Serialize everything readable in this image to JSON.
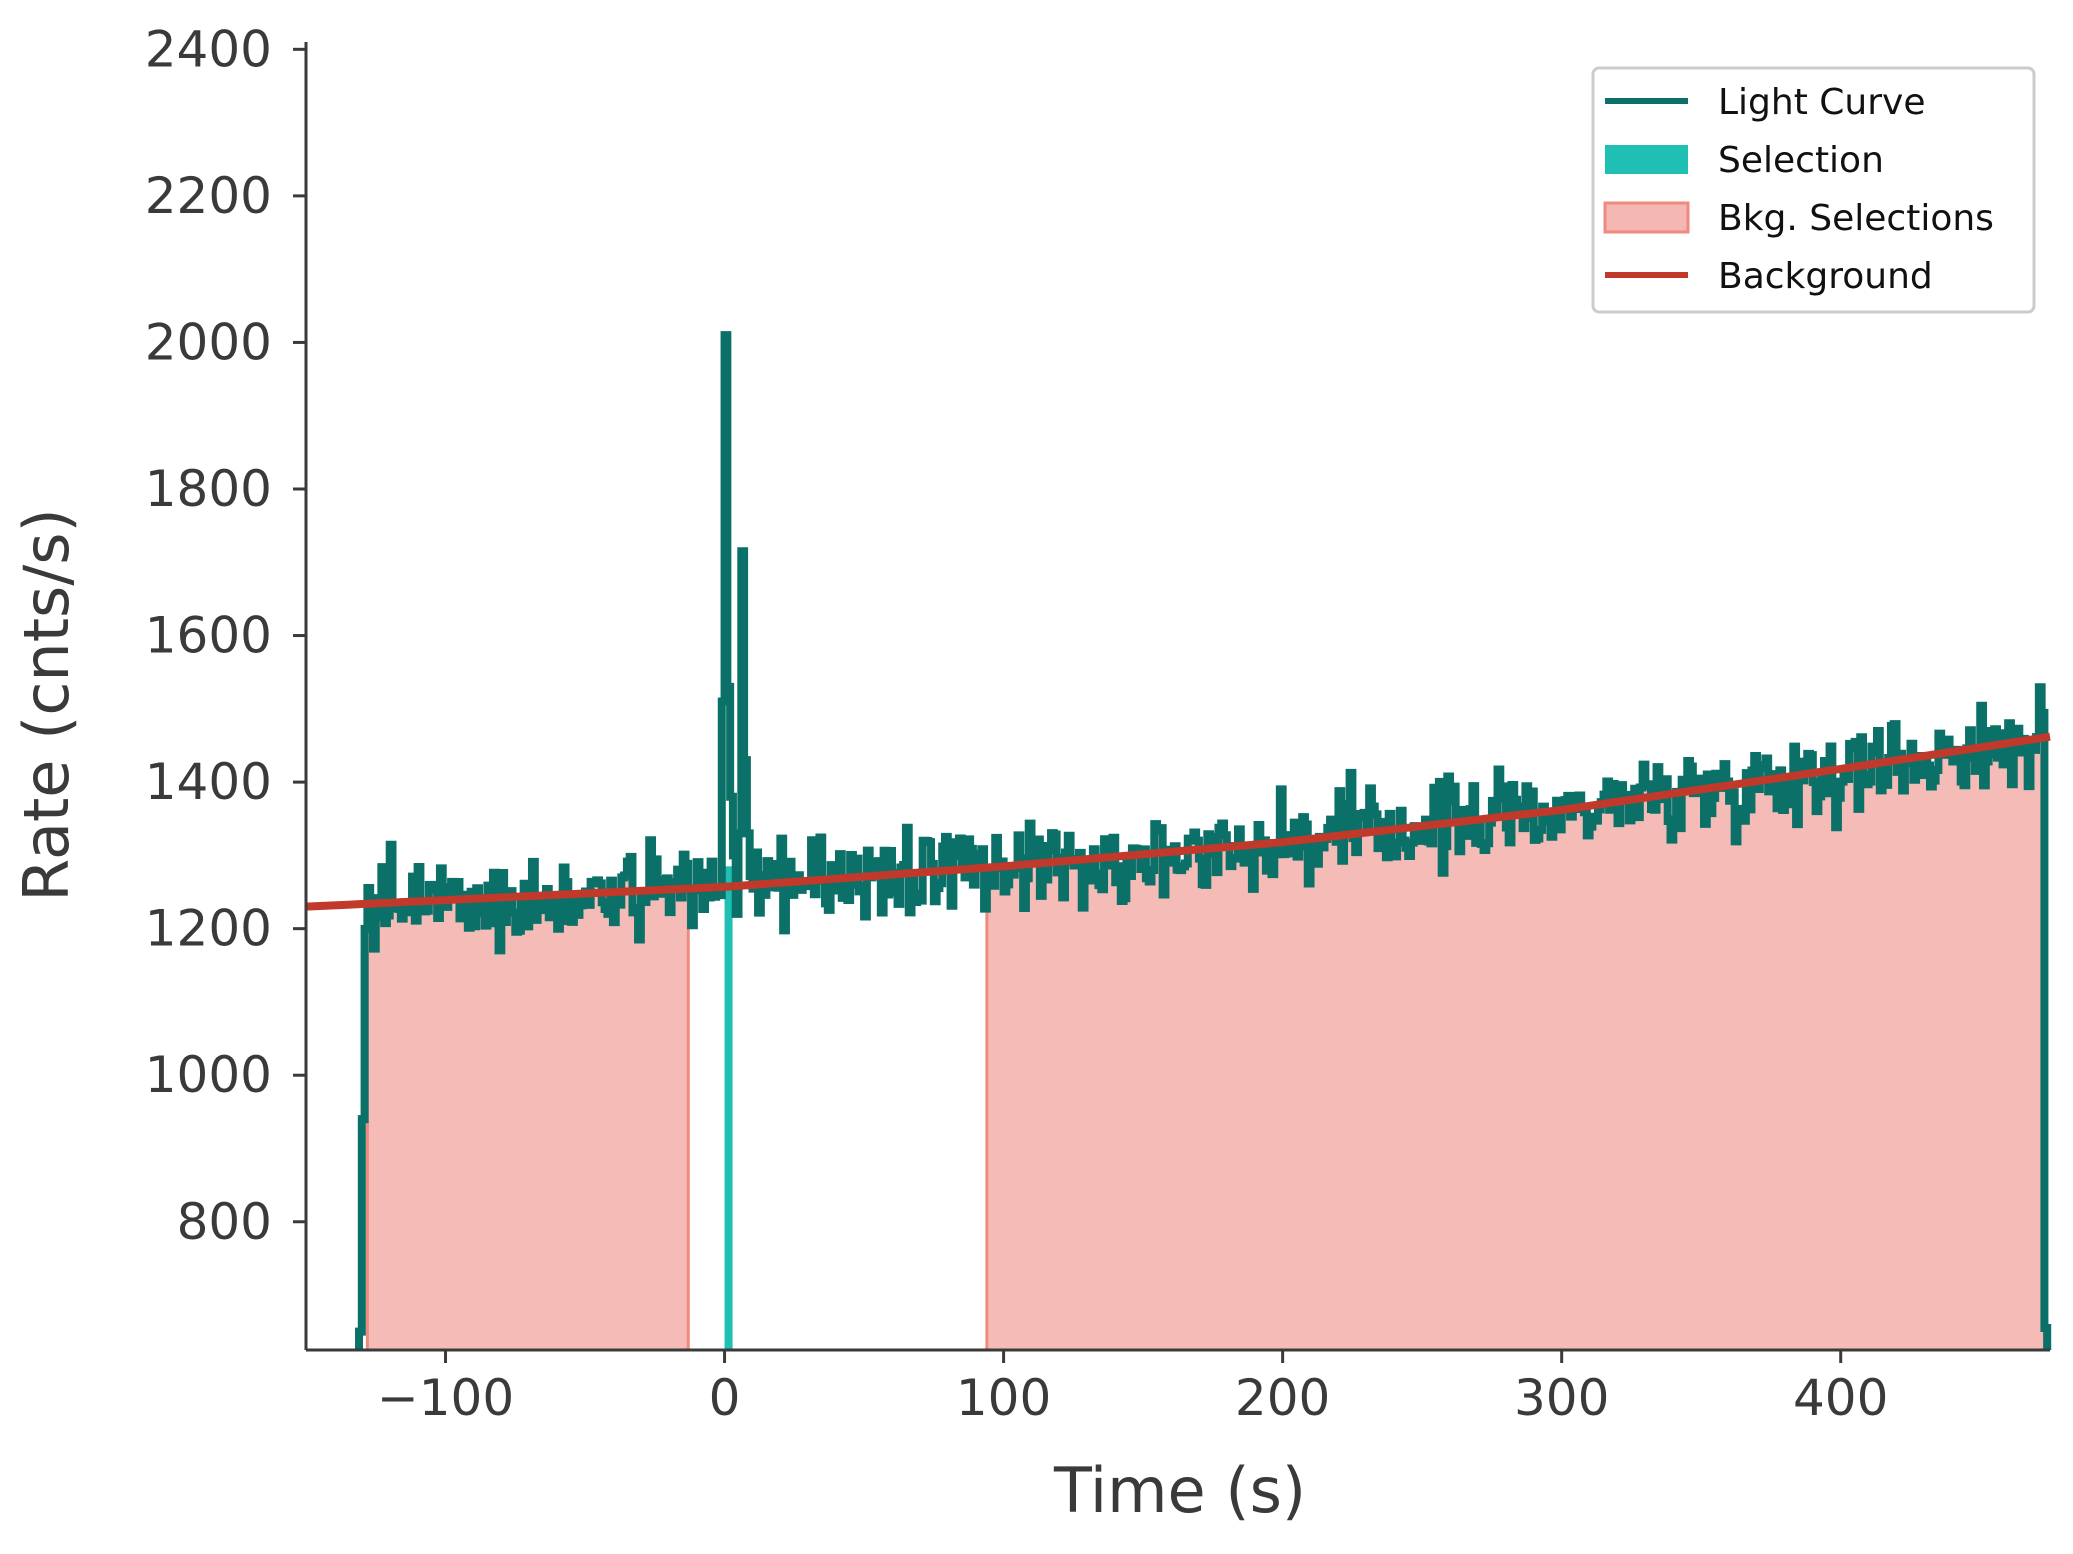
{
  "chart_data": {
    "type": "line",
    "title": "",
    "xlabel": "Time (s)",
    "ylabel": "Rate (cnts/s)",
    "xlim": [
      -150,
      475
    ],
    "ylim": [
      625,
      2410
    ],
    "xticks": [
      -100,
      0,
      100,
      200,
      300,
      400
    ],
    "xtick_labels": [
      "−100",
      "0",
      "100",
      "200",
      "300",
      "400"
    ],
    "yticks": [
      800,
      1000,
      1200,
      1400,
      1600,
      1800,
      2000,
      2200,
      2400
    ],
    "ytick_labels": [
      "800",
      "1000",
      "1200",
      "1400",
      "1600",
      "1800",
      "2000",
      "2200",
      "2400"
    ],
    "grid": false,
    "legend_position": "top-right",
    "light_curve": {
      "t_start": -131,
      "t_end": 473,
      "bin_width": 1.024,
      "baseline": [
        [
          -131,
          1232
        ],
        [
          0,
          1257
        ],
        [
          100,
          1285
        ],
        [
          200,
          1318
        ],
        [
          300,
          1362
        ],
        [
          400,
          1418
        ],
        [
          473,
          1460
        ]
      ],
      "noise_amplitude": 40,
      "edge_drops": [
        [
          -131,
          650
        ],
        [
          -130,
          940
        ],
        [
          473,
          655
        ]
      ],
      "spike": [
        {
          "t": -1,
          "rate": 1510
        },
        {
          "t": 0,
          "rate": 2010
        },
        {
          "t": 1,
          "rate": 1530
        },
        {
          "t": 2,
          "rate": 1380
        },
        {
          "t": 3,
          "rate": 1300
        },
        {
          "t": 5,
          "rate": 1330
        },
        {
          "t": 6,
          "rate": 1715
        },
        {
          "t": 7,
          "rate": 1430
        },
        {
          "t": 8,
          "rate": 1330
        }
      ],
      "color": "#0a7068"
    },
    "source_selection": {
      "t_start": 0,
      "t_end": 2,
      "rate": 1285,
      "color": "#1fbfb4"
    },
    "bkg_selections": [
      {
        "t_start": -128,
        "t_end": -13
      },
      {
        "t_start": 94,
        "t_end": 473
      }
    ],
    "bkg_color": "#f4b7b2",
    "bkg_edge_color": "#ee8a80",
    "background_fit": {
      "points": [
        [
          -150,
          1230
        ],
        [
          0,
          1257
        ],
        [
          100,
          1285
        ],
        [
          200,
          1318
        ],
        [
          300,
          1362
        ],
        [
          400,
          1418
        ],
        [
          475,
          1462
        ]
      ],
      "color": "#c0392b"
    },
    "legend": [
      {
        "label": "Light Curve",
        "kind": "line",
        "color": "#0a7068"
      },
      {
        "label": "Selection",
        "kind": "patch",
        "color": "#1fbfb4"
      },
      {
        "label": "Bkg. Selections",
        "kind": "patch",
        "color": "#f4b7b2"
      },
      {
        "label": "Background",
        "kind": "line",
        "color": "#c0392b"
      }
    ]
  }
}
